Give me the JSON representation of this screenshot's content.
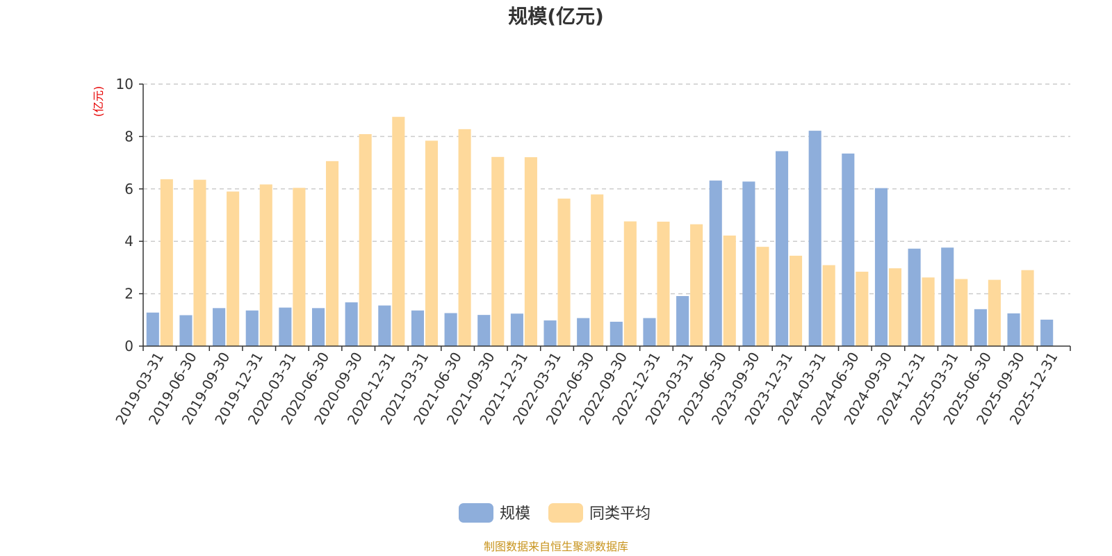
{
  "chart_data": {
    "type": "bar",
    "title": "规模(亿元)",
    "ylabel": "(亿元)",
    "ylim": [
      0,
      10
    ],
    "yticks": [
      0,
      2,
      4,
      6,
      8,
      10
    ],
    "grid": true,
    "legend_position": "bottom-center",
    "categories": [
      "2019-03-31",
      "2019-06-30",
      "2019-09-30",
      "2019-12-31",
      "2020-03-31",
      "2020-06-30",
      "2020-09-30",
      "2020-12-31",
      "2021-03-31",
      "2021-06-30",
      "2021-09-30",
      "2021-12-31",
      "2022-03-31",
      "2022-06-30",
      "2022-09-30",
      "2022-12-31",
      "2023-03-31",
      "2023-06-30",
      "2023-09-30",
      "2023-12-31",
      "2024-03-31",
      "2024-06-30",
      "2024-09-30",
      "2024-12-31",
      "2025-03-31",
      "2025-06-30",
      "2025-09-30",
      "2025-12-31"
    ],
    "series": [
      {
        "name": "规模",
        "color": "#8eaedb",
        "values": [
          1.28,
          1.18,
          1.45,
          1.36,
          1.47,
          1.45,
          1.67,
          1.55,
          1.36,
          1.26,
          1.19,
          1.24,
          0.98,
          1.07,
          0.93,
          1.07,
          1.91,
          6.32,
          6.28,
          7.44,
          8.22,
          7.35,
          6.03,
          3.72,
          3.76,
          1.41,
          1.25,
          1.01
        ]
      },
      {
        "name": "同类平均",
        "color": "#fed99b",
        "values": [
          6.37,
          6.35,
          5.9,
          6.17,
          6.04,
          7.06,
          8.09,
          8.75,
          7.84,
          8.28,
          7.22,
          7.21,
          5.63,
          5.79,
          4.76,
          4.75,
          4.65,
          4.22,
          3.79,
          3.45,
          3.09,
          2.84,
          2.97,
          2.62,
          2.56,
          2.53,
          2.9,
          null
        ]
      }
    ]
  },
  "footer": {
    "source": "制图数据来自恒生聚源数据库"
  }
}
